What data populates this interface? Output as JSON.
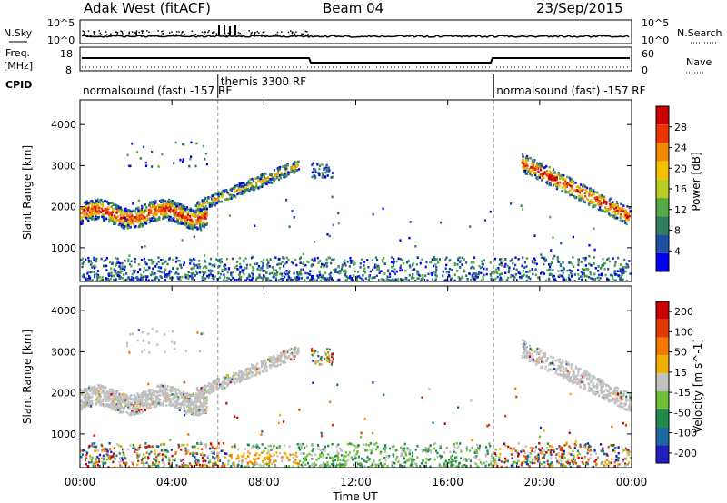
{
  "header": {
    "title": "Adak West (fitACF)",
    "beam": "Beam 04",
    "date": "23/Sep/2015"
  },
  "noise_panel": {
    "left_label": "N.Sky",
    "left_ticks": [
      "10^5",
      "10^0"
    ],
    "right_label": "N.Search",
    "right_ticks": [
      "10^5",
      "10^0"
    ]
  },
  "freq_panel": {
    "left_label_1": "Freq.",
    "left_label_2": "[MHz]",
    "left_ticks": [
      "18",
      "8"
    ],
    "right_label": "Nave",
    "right_ticks": [
      "60",
      "0"
    ],
    "cpid_label": "CPID"
  },
  "cpid_segments": [
    {
      "label": "normalsound (fast) -157 RF",
      "start_hour": 0
    },
    {
      "label": "themis 3300 RF",
      "start_hour": 6
    },
    {
      "label": "normalsound (fast) -157 RF",
      "start_hour": 18
    }
  ],
  "chart_data": [
    {
      "type": "heatmap",
      "name": "power",
      "ylabel": "Slant Range [km]",
      "xlabel": "",
      "ylim": [
        180,
        4600
      ],
      "yticks": [
        "1000",
        "2000",
        "3000",
        "4000"
      ],
      "xlim": [
        0,
        24
      ],
      "colorbar_label": "Power [dB]",
      "colorbar_ticks": [
        "4",
        "8",
        "12",
        "16",
        "20",
        "24",
        "28"
      ]
    },
    {
      "type": "heatmap",
      "name": "velocity",
      "ylabel": "Slant Range [km]",
      "xlabel": "Time UT",
      "ylim": [
        180,
        4600
      ],
      "yticks": [
        "1000",
        "2000",
        "3000",
        "4000"
      ],
      "xlim": [
        0,
        24
      ],
      "xticks": [
        "00:00",
        "04:00",
        "08:00",
        "12:00",
        "16:00",
        "20:00",
        "00:00"
      ],
      "colorbar_label": "Velocity [m s^-1]",
      "colorbar_ticks": [
        "200",
        "100",
        "50",
        "15",
        "-15",
        "-50",
        "-100",
        "-200"
      ]
    }
  ],
  "colors": {
    "power_scale": [
      "#0000ee",
      "#1f4fa0",
      "#2f7f5f",
      "#55a844",
      "#b8cc22",
      "#f4c000",
      "#f08a00",
      "#ee3300",
      "#cc0000"
    ],
    "velocity_scale": [
      "#2020c0",
      "#1a6aa0",
      "#1f8a4a",
      "#6fc03a",
      "#c0c0c0",
      "#f0b000",
      "#f07a00",
      "#e03a00",
      "#cc0000"
    ]
  }
}
